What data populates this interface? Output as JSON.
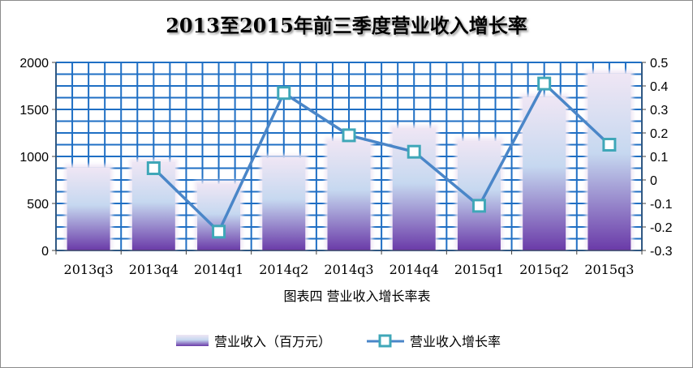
{
  "chart_data": {
    "type": "bar",
    "title": "2013至2015年前三季度营业收入增长率",
    "caption": "图表四  营业收入增长率表",
    "categories": [
      "2013q3",
      "2013q4",
      "2014q1",
      "2014q2",
      "2014q3",
      "2014q4",
      "2015q1",
      "2015q2",
      "2015q3"
    ],
    "series": [
      {
        "name": "营业收入（百万元）",
        "type": "bar",
        "axis": "left",
        "values": [
          880,
          940,
          710,
          985,
          1165,
          1300,
          1165,
          1630,
          1880
        ]
      },
      {
        "name": "营业收入增长率",
        "type": "line",
        "axis": "right",
        "values": [
          null,
          0.05,
          -0.22,
          0.37,
          0.19,
          0.12,
          -0.11,
          0.41,
          0.15
        ]
      }
    ],
    "left_axis": {
      "ylim": [
        0,
        2000
      ],
      "ticks": [
        "0",
        "500",
        "1000",
        "1500",
        "2000"
      ]
    },
    "right_axis": {
      "ylim": [
        -0.3,
        0.5
      ],
      "ticks": [
        "-0.3",
        "-0.2",
        "-0.1",
        "0",
        "0.1",
        "0.2",
        "0.3",
        "0.4",
        "0.5"
      ]
    },
    "grid": true,
    "legend_position": "bottom",
    "colors": {
      "bar_top": "#efe6f4",
      "bar_mid": "#c6d8f0",
      "bar_bottom": "#6a3aa8",
      "line": "#4a86c8",
      "marker_fill": "#ffffff",
      "marker_stroke": "#3fa7b8",
      "grid": "#1f6fc4",
      "frame": "#8c8c8c"
    }
  }
}
